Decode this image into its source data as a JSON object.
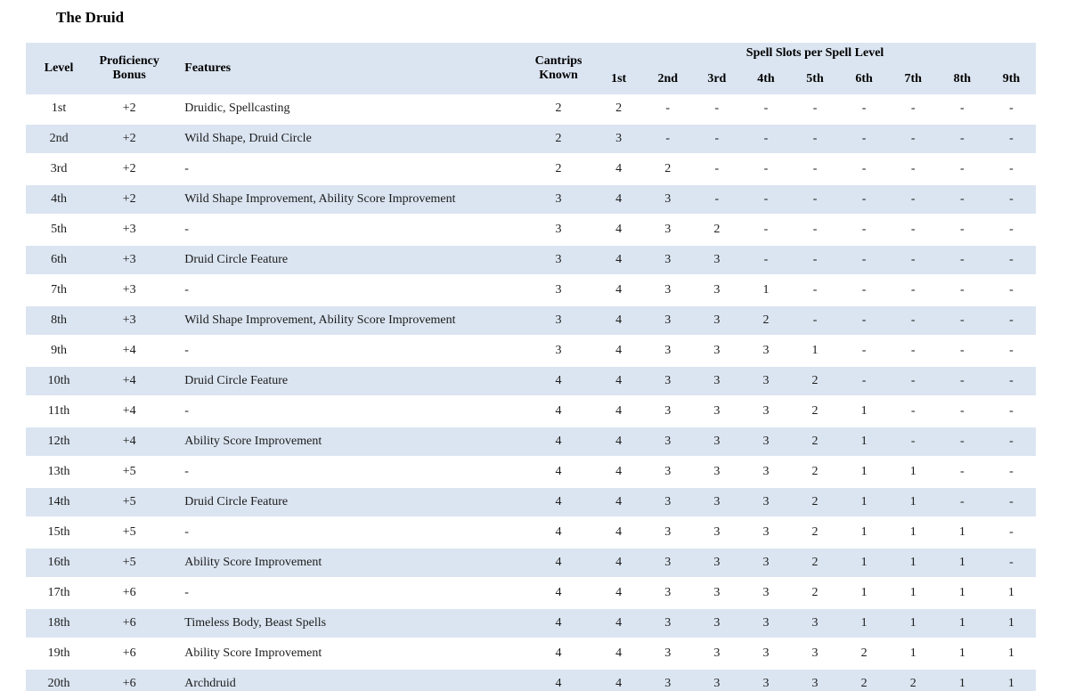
{
  "title": "The Druid",
  "colors": {
    "band": "#dbe5f1",
    "text": "#1b1b1b"
  },
  "table": {
    "headers": {
      "level": "Level",
      "proficiency_bonus": "Proficiency Bonus",
      "features": "Features",
      "cantrips_known": "Cantrips Known",
      "spell_slots_group": "Spell Slots per Spell Level",
      "spell_levels": [
        "1st",
        "2nd",
        "3rd",
        "4th",
        "5th",
        "6th",
        "7th",
        "8th",
        "9th"
      ]
    },
    "rows": [
      {
        "level": "1st",
        "prof": "+2",
        "features": "Druidic, Spellcasting",
        "cantrips": "2",
        "slots": [
          "2",
          "-",
          "-",
          "-",
          "-",
          "-",
          "-",
          "-",
          "-"
        ]
      },
      {
        "level": "2nd",
        "prof": "+2",
        "features": "Wild Shape, Druid Circle",
        "cantrips": "2",
        "slots": [
          "3",
          "-",
          "-",
          "-",
          "-",
          "-",
          "-",
          "-",
          "-"
        ]
      },
      {
        "level": "3rd",
        "prof": "+2",
        "features": "-",
        "cantrips": "2",
        "slots": [
          "4",
          "2",
          "-",
          "-",
          "-",
          "-",
          "-",
          "-",
          "-"
        ]
      },
      {
        "level": "4th",
        "prof": "+2",
        "features": "Wild Shape Improvement, Ability Score Improvement",
        "cantrips": "3",
        "slots": [
          "4",
          "3",
          "-",
          "-",
          "-",
          "-",
          "-",
          "-",
          "-"
        ]
      },
      {
        "level": "5th",
        "prof": "+3",
        "features": "-",
        "cantrips": "3",
        "slots": [
          "4",
          "3",
          "2",
          "-",
          "-",
          "-",
          "-",
          "-",
          "-"
        ]
      },
      {
        "level": "6th",
        "prof": "+3",
        "features": "Druid Circle Feature",
        "cantrips": "3",
        "slots": [
          "4",
          "3",
          "3",
          "-",
          "-",
          "-",
          "-",
          "-",
          "-"
        ]
      },
      {
        "level": "7th",
        "prof": "+3",
        "features": "-",
        "cantrips": "3",
        "slots": [
          "4",
          "3",
          "3",
          "1",
          "-",
          "-",
          "-",
          "-",
          "-"
        ]
      },
      {
        "level": "8th",
        "prof": "+3",
        "features": "Wild Shape Improvement, Ability Score Improvement",
        "cantrips": "3",
        "slots": [
          "4",
          "3",
          "3",
          "2",
          "-",
          "-",
          "-",
          "-",
          "-"
        ]
      },
      {
        "level": "9th",
        "prof": "+4",
        "features": "-",
        "cantrips": "3",
        "slots": [
          "4",
          "3",
          "3",
          "3",
          "1",
          "-",
          "-",
          "-",
          "-"
        ]
      },
      {
        "level": "10th",
        "prof": "+4",
        "features": "Druid Circle Feature",
        "cantrips": "4",
        "slots": [
          "4",
          "3",
          "3",
          "3",
          "2",
          "-",
          "-",
          "-",
          "-"
        ]
      },
      {
        "level": "11th",
        "prof": "+4",
        "features": "-",
        "cantrips": "4",
        "slots": [
          "4",
          "3",
          "3",
          "3",
          "2",
          "1",
          "-",
          "-",
          "-"
        ]
      },
      {
        "level": "12th",
        "prof": "+4",
        "features": "Ability Score Improvement",
        "cantrips": "4",
        "slots": [
          "4",
          "3",
          "3",
          "3",
          "2",
          "1",
          "-",
          "-",
          "-"
        ]
      },
      {
        "level": "13th",
        "prof": "+5",
        "features": "-",
        "cantrips": "4",
        "slots": [
          "4",
          "3",
          "3",
          "3",
          "2",
          "1",
          "1",
          "-",
          "-"
        ]
      },
      {
        "level": "14th",
        "prof": "+5",
        "features": "Druid Circle Feature",
        "cantrips": "4",
        "slots": [
          "4",
          "3",
          "3",
          "3",
          "2",
          "1",
          "1",
          "-",
          "-"
        ]
      },
      {
        "level": "15th",
        "prof": "+5",
        "features": "-",
        "cantrips": "4",
        "slots": [
          "4",
          "3",
          "3",
          "3",
          "2",
          "1",
          "1",
          "1",
          "-"
        ]
      },
      {
        "level": "16th",
        "prof": "+5",
        "features": "Ability Score Improvement",
        "cantrips": "4",
        "slots": [
          "4",
          "3",
          "3",
          "3",
          "2",
          "1",
          "1",
          "1",
          "-"
        ]
      },
      {
        "level": "17th",
        "prof": "+6",
        "features": "-",
        "cantrips": "4",
        "slots": [
          "4",
          "3",
          "3",
          "3",
          "2",
          "1",
          "1",
          "1",
          "1"
        ]
      },
      {
        "level": "18th",
        "prof": "+6",
        "features": "Timeless Body, Beast Spells",
        "cantrips": "4",
        "slots": [
          "4",
          "3",
          "3",
          "3",
          "3",
          "1",
          "1",
          "1",
          "1"
        ]
      },
      {
        "level": "19th",
        "prof": "+6",
        "features": "Ability Score Improvement",
        "cantrips": "4",
        "slots": [
          "4",
          "3",
          "3",
          "3",
          "3",
          "2",
          "1",
          "1",
          "1"
        ]
      },
      {
        "level": "20th",
        "prof": "+6",
        "features": "Archdruid",
        "cantrips": "4",
        "slots": [
          "4",
          "3",
          "3",
          "3",
          "3",
          "2",
          "2",
          "1",
          "1"
        ]
      }
    ]
  }
}
